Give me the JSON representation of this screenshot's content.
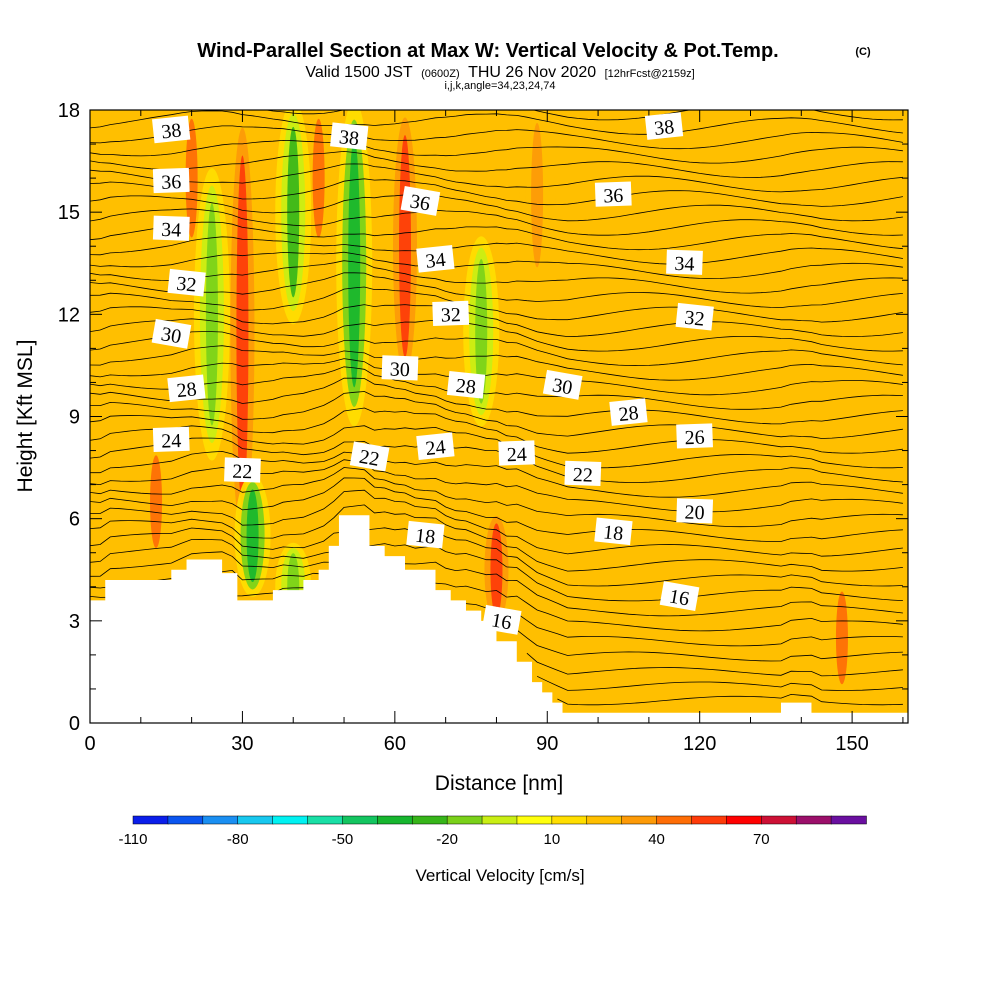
{
  "header": {
    "title": "Wind-Parallel Section at Max W: Vertical Velocity & Pot.Temp.",
    "copyright": "(C)",
    "valid_prefix": "Valid 1500 JST",
    "valid_utc": "(0600Z)",
    "valid_date": "THU 26 Nov 2020",
    "forecast": "[12hrFcst@2159z]",
    "indices": "i,j,k,angle=34,23,24,74"
  },
  "colorbar": {
    "label": "Vertical Velocity [cm/s]",
    "tick_labels": [
      "-110",
      "-80",
      "-50",
      "-20",
      "10",
      "40",
      "70"
    ],
    "tick_values": [
      -110,
      -80,
      -50,
      -20,
      10,
      40,
      70
    ],
    "levels": [
      -110,
      -100,
      -90,
      -80,
      -70,
      -60,
      -50,
      -40,
      -30,
      -20,
      -10,
      0,
      10,
      20,
      30,
      40,
      50,
      60,
      70,
      80
    ],
    "colors": [
      "#0a1eea",
      "#0a55f0",
      "#1a8ff2",
      "#18c8ef",
      "#00f2f2",
      "#19dfa6",
      "#13c560",
      "#17b62f",
      "#37b51a",
      "#7ad11a",
      "#c9ee14",
      "#ffff0e",
      "#ffde00",
      "#ffbf00",
      "#fd9a08",
      "#fe6d06",
      "#fe3b0a",
      "#ff0000",
      "#cd1035",
      "#9b0f6a",
      "#6a0fa0"
    ]
  },
  "chart_data": {
    "type": "heatmap",
    "title": "Wind-Parallel Section at Max W: Vertical Velocity & Pot.Temp.",
    "xlabel": "Distance [nm]",
    "ylabel": "Height [Kft MSL]",
    "xlim": [
      0,
      161
    ],
    "ylim": [
      0,
      18
    ],
    "x_ticks": [
      0,
      30,
      60,
      90,
      120,
      150
    ],
    "y_ticks": [
      0,
      3,
      6,
      9,
      12,
      15,
      18
    ],
    "grid": false,
    "background_velocity_cm_s": 10,
    "updraft_bands": [
      {
        "x": 30,
        "height_range": [
          5,
          18
        ],
        "peak_velocity_cm_s": 45
      },
      {
        "x": 62,
        "height_range": [
          10,
          18
        ],
        "peak_velocity_cm_s": 40
      },
      {
        "x": 20,
        "height_range": [
          14,
          18
        ],
        "peak_velocity_cm_s": 30
      },
      {
        "x": 45,
        "height_range": [
          14,
          18
        ],
        "peak_velocity_cm_s": 30
      },
      {
        "x": 88,
        "height_range": [
          13,
          18
        ],
        "peak_velocity_cm_s": 25
      },
      {
        "x": 80,
        "height_range": [
          3,
          6
        ],
        "peak_velocity_cm_s": 40
      },
      {
        "x": 13,
        "height_range": [
          5,
          8
        ],
        "peak_velocity_cm_s": 35
      },
      {
        "x": 148,
        "height_range": [
          1,
          4
        ],
        "peak_velocity_cm_s": 35
      }
    ],
    "downdraft_bands": [
      {
        "x": 52,
        "height_range": [
          9,
          18
        ],
        "peak_velocity_cm_s": -45
      },
      {
        "x": 40,
        "height_range": [
          12,
          18
        ],
        "peak_velocity_cm_s": -35
      },
      {
        "x": 24,
        "height_range": [
          8,
          16
        ],
        "peak_velocity_cm_s": -30
      },
      {
        "x": 77,
        "height_range": [
          9,
          14
        ],
        "peak_velocity_cm_s": -30
      },
      {
        "x": 32,
        "height_range": [
          4,
          7
        ],
        "peak_velocity_cm_s": -50
      },
      {
        "x": 40,
        "height_range": [
          3,
          5
        ],
        "peak_velocity_cm_s": -25
      }
    ],
    "theta_contour_labels": [
      {
        "text": "38",
        "x": 16,
        "y": 17.4
      },
      {
        "text": "36",
        "x": 16,
        "y": 15.9
      },
      {
        "text": "34",
        "x": 16,
        "y": 14.5
      },
      {
        "text": "32",
        "x": 19,
        "y": 12.9
      },
      {
        "text": "30",
        "x": 16,
        "y": 11.4
      },
      {
        "text": "28",
        "x": 19,
        "y": 9.8
      },
      {
        "text": "24",
        "x": 16,
        "y": 8.3
      },
      {
        "text": "22",
        "x": 30,
        "y": 7.4
      },
      {
        "text": "38",
        "x": 51,
        "y": 17.2
      },
      {
        "text": "36",
        "x": 65,
        "y": 15.3
      },
      {
        "text": "34",
        "x": 68,
        "y": 13.6
      },
      {
        "text": "32",
        "x": 71,
        "y": 12.0
      },
      {
        "text": "30",
        "x": 61,
        "y": 10.4
      },
      {
        "text": "28",
        "x": 74,
        "y": 9.9
      },
      {
        "text": "22",
        "x": 55,
        "y": 7.8
      },
      {
        "text": "24",
        "x": 68,
        "y": 8.1
      },
      {
        "text": "24",
        "x": 84,
        "y": 7.9
      },
      {
        "text": "22",
        "x": 97,
        "y": 7.3
      },
      {
        "text": "18",
        "x": 66,
        "y": 5.5
      },
      {
        "text": "16",
        "x": 81,
        "y": 3.0
      },
      {
        "text": "38",
        "x": 113,
        "y": 17.5
      },
      {
        "text": "36",
        "x": 103,
        "y": 15.5
      },
      {
        "text": "34",
        "x": 117,
        "y": 13.5
      },
      {
        "text": "32",
        "x": 119,
        "y": 11.9
      },
      {
        "text": "30",
        "x": 93,
        "y": 9.9
      },
      {
        "text": "28",
        "x": 106,
        "y": 9.1
      },
      {
        "text": "26",
        "x": 119,
        "y": 8.4
      },
      {
        "text": "20",
        "x": 119,
        "y": 6.2
      },
      {
        "text": "18",
        "x": 103,
        "y": 5.6
      },
      {
        "text": "16",
        "x": 116,
        "y": 3.7
      }
    ],
    "terrain_height_kft": [
      [
        0,
        3.6
      ],
      [
        3,
        4.2
      ],
      [
        16,
        4.5
      ],
      [
        19,
        4.8
      ],
      [
        26,
        4.4
      ],
      [
        29,
        3.6
      ],
      [
        36,
        3.9
      ],
      [
        42,
        4.2
      ],
      [
        45,
        4.5
      ],
      [
        47,
        5.2
      ],
      [
        49,
        6.1
      ],
      [
        55,
        5.2
      ],
      [
        58,
        4.9
      ],
      [
        62,
        4.5
      ],
      [
        68,
        3.9
      ],
      [
        71,
        3.6
      ],
      [
        74,
        3.3
      ],
      [
        77,
        3.0
      ],
      [
        80,
        2.4
      ],
      [
        84,
        1.8
      ],
      [
        87,
        1.2
      ],
      [
        89,
        0.9
      ],
      [
        91,
        0.6
      ],
      [
        93,
        0.3
      ],
      [
        136,
        0.6
      ],
      [
        142,
        0.3
      ],
      [
        161,
        0.3
      ]
    ]
  }
}
